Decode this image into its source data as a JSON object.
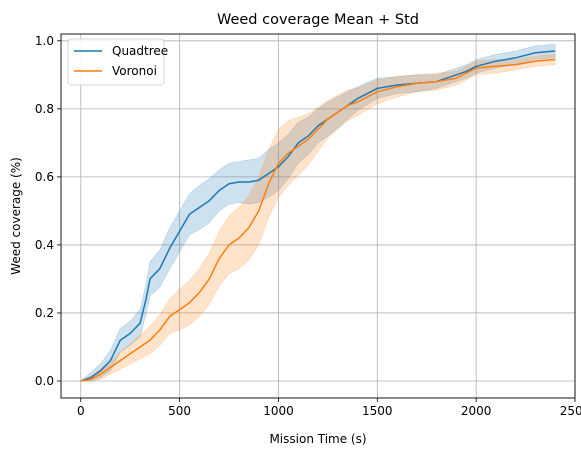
{
  "chart_data": {
    "type": "line",
    "title": "Weed coverage Mean + Std",
    "xlabel": "Mission Time (s)",
    "ylabel": "Weed coverage (%)",
    "xlim": [
      -100,
      2500
    ],
    "ylim": [
      -0.05,
      1.02
    ],
    "xticks": [
      0,
      500,
      1000,
      1500,
      2000,
      2500
    ],
    "xtick_labels": [
      "0",
      "500",
      "1000",
      "1500",
      "2000",
      "2500"
    ],
    "yticks": [
      0.0,
      0.2,
      0.4,
      0.6,
      0.8,
      1.0
    ],
    "ytick_labels": [
      "0.0",
      "0.2",
      "0.4",
      "0.6",
      "0.8",
      "1.0"
    ],
    "grid": true,
    "legend_position": "top-left",
    "series": [
      {
        "name": "Quadtree",
        "color": "#1f77b4",
        "fill_opacity": 0.22,
        "x": [
          0,
          50,
          100,
          150,
          200,
          250,
          300,
          330,
          350,
          400,
          450,
          500,
          550,
          600,
          650,
          700,
          750,
          800,
          850,
          900,
          950,
          1000,
          1050,
          1100,
          1150,
          1200,
          1250,
          1300,
          1350,
          1400,
          1500,
          1600,
          1700,
          1800,
          1900,
          1950,
          2000,
          2100,
          2200,
          2300,
          2400
        ],
        "mean": [
          0.0,
          0.01,
          0.03,
          0.06,
          0.12,
          0.14,
          0.17,
          0.24,
          0.3,
          0.33,
          0.39,
          0.44,
          0.49,
          0.51,
          0.53,
          0.56,
          0.58,
          0.585,
          0.585,
          0.59,
          0.61,
          0.63,
          0.66,
          0.7,
          0.72,
          0.75,
          0.77,
          0.79,
          0.81,
          0.83,
          0.86,
          0.87,
          0.875,
          0.88,
          0.9,
          0.91,
          0.925,
          0.94,
          0.95,
          0.965,
          0.97
        ],
        "std": [
          0.0,
          0.015,
          0.02,
          0.03,
          0.035,
          0.035,
          0.04,
          0.045,
          0.05,
          0.055,
          0.06,
          0.06,
          0.06,
          0.065,
          0.065,
          0.06,
          0.06,
          0.06,
          0.065,
          0.065,
          0.07,
          0.07,
          0.065,
          0.06,
          0.055,
          0.05,
          0.05,
          0.045,
          0.04,
          0.035,
          0.03,
          0.025,
          0.025,
          0.02,
          0.02,
          0.02,
          0.02,
          0.02,
          0.02,
          0.02,
          0.02
        ]
      },
      {
        "name": "Voronoi",
        "color": "#ff7f0e",
        "fill_opacity": 0.22,
        "x": [
          0,
          50,
          100,
          150,
          200,
          250,
          300,
          350,
          400,
          450,
          500,
          550,
          600,
          650,
          700,
          750,
          800,
          850,
          900,
          950,
          1000,
          1050,
          1100,
          1150,
          1200,
          1250,
          1300,
          1350,
          1400,
          1500,
          1600,
          1700,
          1800,
          1900,
          1950,
          2000,
          2100,
          2200,
          2300,
          2400
        ],
        "mean": [
          0.0,
          0.005,
          0.02,
          0.04,
          0.06,
          0.08,
          0.1,
          0.12,
          0.15,
          0.19,
          0.21,
          0.23,
          0.26,
          0.3,
          0.36,
          0.4,
          0.42,
          0.45,
          0.5,
          0.58,
          0.64,
          0.67,
          0.69,
          0.71,
          0.74,
          0.77,
          0.79,
          0.81,
          0.82,
          0.85,
          0.865,
          0.875,
          0.88,
          0.89,
          0.905,
          0.92,
          0.925,
          0.93,
          0.94,
          0.945
        ],
        "std": [
          0.0,
          0.01,
          0.015,
          0.02,
          0.025,
          0.03,
          0.035,
          0.04,
          0.045,
          0.05,
          0.06,
          0.065,
          0.07,
          0.075,
          0.08,
          0.085,
          0.09,
          0.095,
          0.1,
          0.1,
          0.1,
          0.095,
          0.085,
          0.075,
          0.065,
          0.055,
          0.05,
          0.045,
          0.04,
          0.035,
          0.03,
          0.025,
          0.025,
          0.02,
          0.02,
          0.02,
          0.02,
          0.015,
          0.015,
          0.015
        ]
      }
    ]
  }
}
